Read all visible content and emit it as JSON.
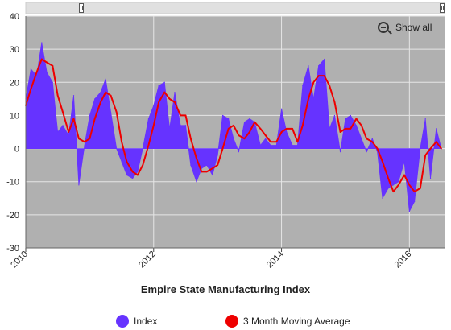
{
  "chart_data": {
    "type": "area",
    "title": "Empire State Manufacturing Index",
    "xlabel": "",
    "ylabel": "",
    "xlim": [
      2010.0,
      2016.55
    ],
    "ylim": [
      -30,
      40
    ],
    "y_ticks": [
      "40",
      "30",
      "20",
      "10",
      "0",
      "-10",
      "-20",
      "-30"
    ],
    "x_ticks": [
      {
        "value": 2010,
        "label": "2010"
      },
      {
        "value": 2012,
        "label": "2012"
      },
      {
        "value": 2014,
        "label": "2014"
      },
      {
        "value": 2016,
        "label": "2016"
      }
    ],
    "grid": true,
    "legend_position": "bottom",
    "series": [
      {
        "name": "Index",
        "type": "area",
        "color": "#6633ff",
        "points": [
          [
            2010.0,
            15
          ],
          [
            2010.08,
            24
          ],
          [
            2010.17,
            22
          ],
          [
            2010.25,
            32
          ],
          [
            2010.33,
            23
          ],
          [
            2010.42,
            20
          ],
          [
            2010.5,
            5
          ],
          [
            2010.58,
            7
          ],
          [
            2010.67,
            4
          ],
          [
            2010.75,
            16
          ],
          [
            2010.83,
            -11
          ],
          [
            2010.92,
            1
          ],
          [
            2011.0,
            10
          ],
          [
            2011.08,
            15
          ],
          [
            2011.17,
            17
          ],
          [
            2011.25,
            21
          ],
          [
            2011.33,
            11
          ],
          [
            2011.42,
            0
          ],
          [
            2011.5,
            -4
          ],
          [
            2011.58,
            -8
          ],
          [
            2011.67,
            -9
          ],
          [
            2011.75,
            -7
          ],
          [
            2011.83,
            0
          ],
          [
            2011.92,
            9
          ],
          [
            2012.0,
            13
          ],
          [
            2012.08,
            19
          ],
          [
            2012.17,
            20
          ],
          [
            2012.25,
            6
          ],
          [
            2012.33,
            17
          ],
          [
            2012.42,
            7
          ],
          [
            2012.5,
            7
          ],
          [
            2012.58,
            -5
          ],
          [
            2012.67,
            -10
          ],
          [
            2012.75,
            -6
          ],
          [
            2012.83,
            -5
          ],
          [
            2012.92,
            -8
          ],
          [
            2013.0,
            -2
          ],
          [
            2013.08,
            10
          ],
          [
            2013.17,
            9
          ],
          [
            2013.25,
            3
          ],
          [
            2013.33,
            -1
          ],
          [
            2013.42,
            8
          ],
          [
            2013.5,
            9
          ],
          [
            2013.58,
            8
          ],
          [
            2013.67,
            1
          ],
          [
            2013.75,
            3
          ],
          [
            2013.83,
            1
          ],
          [
            2013.92,
            1
          ],
          [
            2014.0,
            12
          ],
          [
            2014.08,
            5
          ],
          [
            2014.17,
            1
          ],
          [
            2014.25,
            1
          ],
          [
            2014.33,
            19
          ],
          [
            2014.42,
            25
          ],
          [
            2014.5,
            15
          ],
          [
            2014.58,
            25
          ],
          [
            2014.67,
            27
          ],
          [
            2014.75,
            6
          ],
          [
            2014.83,
            10
          ],
          [
            2014.92,
            -1
          ],
          [
            2015.0,
            9
          ],
          [
            2015.08,
            10
          ],
          [
            2015.17,
            7
          ],
          [
            2015.25,
            3
          ],
          [
            2015.33,
            -1
          ],
          [
            2015.42,
            3
          ],
          [
            2015.5,
            -1
          ],
          [
            2015.58,
            -15
          ],
          [
            2015.67,
            -12
          ],
          [
            2015.75,
            -11
          ],
          [
            2015.83,
            -10
          ],
          [
            2015.92,
            -4
          ],
          [
            2016.0,
            -19
          ],
          [
            2016.08,
            -16
          ],
          [
            2016.17,
            0
          ],
          [
            2016.25,
            9
          ],
          [
            2016.33,
            -9
          ],
          [
            2016.42,
            6
          ],
          [
            2016.5,
            0
          ]
        ]
      },
      {
        "name": "3 Month Moving Average",
        "type": "line",
        "color": "#ee0000",
        "points": [
          [
            2010.0,
            13
          ],
          [
            2010.08,
            18
          ],
          [
            2010.17,
            23
          ],
          [
            2010.25,
            27
          ],
          [
            2010.33,
            26
          ],
          [
            2010.42,
            25
          ],
          [
            2010.5,
            16
          ],
          [
            2010.58,
            11
          ],
          [
            2010.67,
            5
          ],
          [
            2010.75,
            9
          ],
          [
            2010.83,
            3
          ],
          [
            2010.92,
            2
          ],
          [
            2011.0,
            3
          ],
          [
            2011.08,
            9
          ],
          [
            2011.17,
            14
          ],
          [
            2011.25,
            17
          ],
          [
            2011.33,
            16
          ],
          [
            2011.42,
            11
          ],
          [
            2011.5,
            2
          ],
          [
            2011.58,
            -4
          ],
          [
            2011.67,
            -7
          ],
          [
            2011.75,
            -8
          ],
          [
            2011.83,
            -5
          ],
          [
            2011.92,
            1
          ],
          [
            2012.0,
            7
          ],
          [
            2012.08,
            14
          ],
          [
            2012.17,
            17
          ],
          [
            2012.25,
            15
          ],
          [
            2012.33,
            14
          ],
          [
            2012.42,
            10
          ],
          [
            2012.5,
            10
          ],
          [
            2012.58,
            3
          ],
          [
            2012.67,
            -3
          ],
          [
            2012.75,
            -7
          ],
          [
            2012.83,
            -7
          ],
          [
            2012.92,
            -6
          ],
          [
            2013.0,
            -5
          ],
          [
            2013.08,
            0
          ],
          [
            2013.17,
            6
          ],
          [
            2013.25,
            7
          ],
          [
            2013.33,
            4
          ],
          [
            2013.42,
            3
          ],
          [
            2013.5,
            5
          ],
          [
            2013.58,
            8
          ],
          [
            2013.67,
            6
          ],
          [
            2013.75,
            4
          ],
          [
            2013.83,
            2
          ],
          [
            2013.92,
            2
          ],
          [
            2014.0,
            5
          ],
          [
            2014.08,
            6
          ],
          [
            2014.17,
            6
          ],
          [
            2014.25,
            2
          ],
          [
            2014.33,
            7
          ],
          [
            2014.42,
            15
          ],
          [
            2014.5,
            20
          ],
          [
            2014.58,
            22
          ],
          [
            2014.67,
            22
          ],
          [
            2014.75,
            19
          ],
          [
            2014.83,
            14
          ],
          [
            2014.92,
            5
          ],
          [
            2015.0,
            6
          ],
          [
            2015.08,
            6
          ],
          [
            2015.17,
            9
          ],
          [
            2015.25,
            7
          ],
          [
            2015.33,
            3
          ],
          [
            2015.42,
            2
          ],
          [
            2015.5,
            0
          ],
          [
            2015.58,
            -4
          ],
          [
            2015.67,
            -9
          ],
          [
            2015.75,
            -13
          ],
          [
            2015.83,
            -11
          ],
          [
            2015.92,
            -8
          ],
          [
            2016.0,
            -11
          ],
          [
            2016.08,
            -13
          ],
          [
            2016.17,
            -12
          ],
          [
            2016.25,
            -2
          ],
          [
            2016.33,
            0
          ],
          [
            2016.42,
            2
          ],
          [
            2016.5,
            0
          ]
        ]
      }
    ]
  },
  "toolbar": {
    "show_all_label": "Show all",
    "zoom_icon": "zoom-out-icon"
  },
  "colors": {
    "plot_background": "#b0b0b0",
    "grid": "#e6e6e6",
    "scrollbar": "#e0e0e0"
  }
}
